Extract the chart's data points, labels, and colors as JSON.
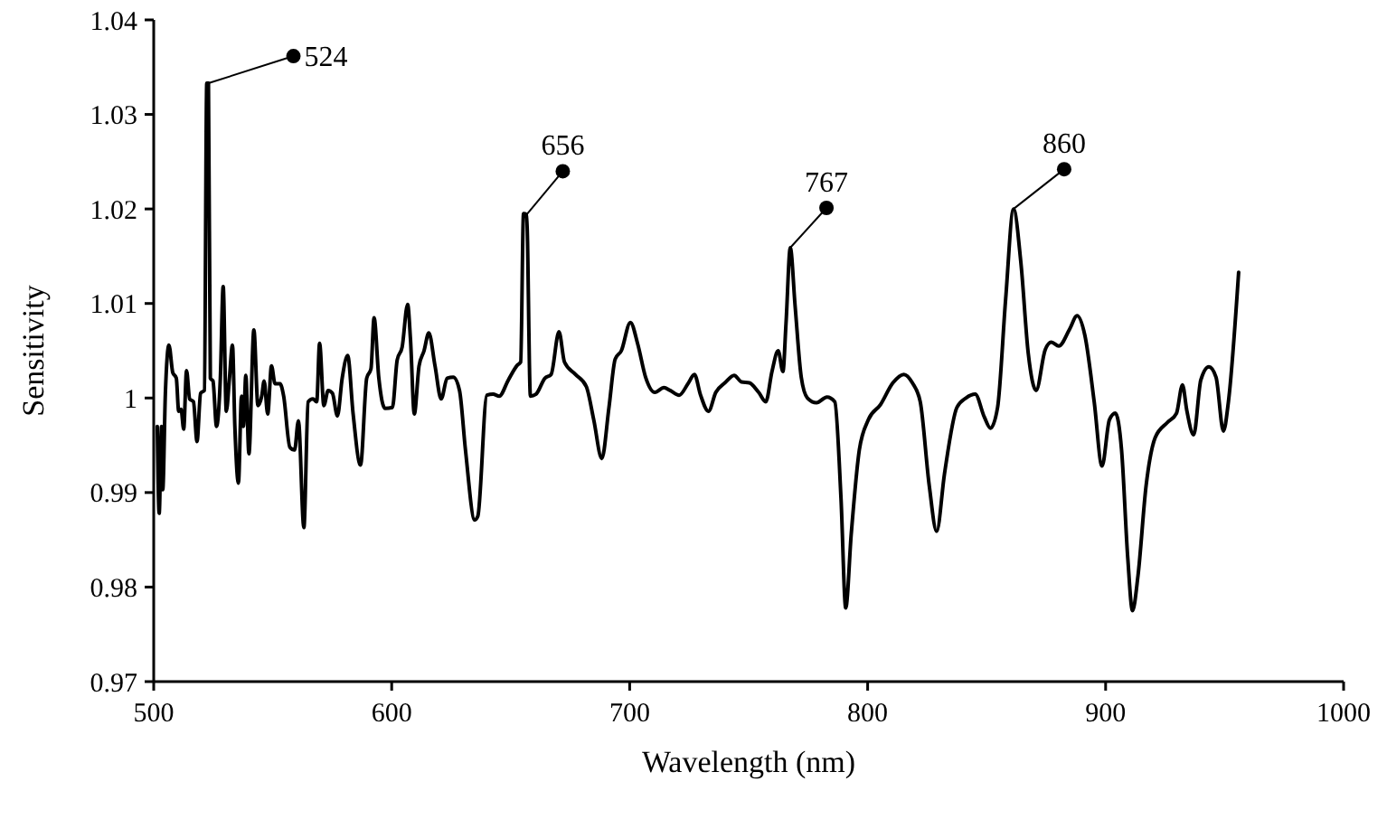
{
  "chart_data": {
    "type": "line",
    "xlabel": "Wavelength (nm)",
    "ylabel": "Sensitivity",
    "xlim": [
      500,
      1000
    ],
    "xticks": [
      500,
      600,
      700,
      800,
      900,
      1000
    ],
    "ylim": [
      0.97,
      1.04
    ],
    "yticks": [
      0.97,
      0.98,
      0.99,
      1,
      1.01,
      1.02,
      1.03,
      1.04
    ],
    "grid": false,
    "marker": "none",
    "line_style": "solid",
    "annotations": [
      {
        "text": "524",
        "x": 523,
        "y": 1.0333
      },
      {
        "text": "656",
        "x": 656.7,
        "y": 1.0194
      },
      {
        "text": "767",
        "x": 767.5,
        "y": 1.0159
      },
      {
        "text": "860",
        "x": 861.3,
        "y": 1.02
      }
    ],
    "series": [
      {
        "color": "#000000",
        "x": [
          501.5,
          502.3,
          503.3,
          503.8,
          504.9,
          506.4,
          508,
          509.5,
          510.5,
          511.5,
          512.6,
          513.8,
          515.1,
          516.7,
          518.2,
          519.7,
          521.3,
          522.3,
          523,
          523.8,
          524.9,
          526.4,
          528,
          529.2,
          530.5,
          531.8,
          533.1,
          534.1,
          535.6,
          536.9,
          537.7,
          538.7,
          540,
          542.1,
          543.8,
          545.4,
          546.4,
          547.9,
          549.5,
          551,
          553.1,
          554.6,
          557.2,
          559.2,
          560.8,
          563.1,
          564.9,
          566.9,
          568.5,
          569.7,
          571.5,
          573.3,
          575.1,
          577.2,
          579.2,
          581.5,
          583.8,
          586.9,
          589.5,
          591.3,
          592.6,
          594.6,
          597.2,
          600.3,
          602.3,
          604.4,
          606.7,
          607.9,
          609.5,
          611.5,
          613.6,
          615.6,
          618.2,
          620.8,
          623.3,
          625.9,
          628.5,
          631,
          634.9,
          636.2,
          640,
          642.6,
          645.2,
          649,
          652.9,
          654.2,
          655.4,
          656.7,
          658.3,
          660.6,
          664.4,
          667,
          670.3,
          672.6,
          677.2,
          681.8,
          684.9,
          688.3,
          691.3,
          693.9,
          696.5,
          700.3,
          703.4,
          706.7,
          710.6,
          714.4,
          717,
          720.8,
          724.7,
          727.2,
          729.8,
          733.1,
          736.2,
          740,
          743.9,
          747,
          750.3,
          754.2,
          757.2,
          759.8,
          762.4,
          764.4,
          765.7,
          767.5,
          769.5,
          772.1,
          774.7,
          778.5,
          782.9,
          786.2,
          788.8,
          790.8,
          793.1,
          796.5,
          800.3,
          805.4,
          810.6,
          815.2,
          818.8,
          822.1,
          825.9,
          829,
          832.3,
          837.5,
          841.3,
          845.2,
          849,
          851.6,
          854.6,
          858,
          861.3,
          864.4,
          867.5,
          870.8,
          874.6,
          877.2,
          880.3,
          884.9,
          888,
          891.3,
          895.2,
          898.5,
          901.6,
          904.1,
          906.7,
          909.3,
          911.3,
          913.6,
          917,
          920.8,
          925.9,
          929.8,
          932.3,
          934.1,
          937,
          940,
          943.4,
          946.4,
          949.5,
          951.6,
          955.9
        ],
        "values": [
          0.997,
          0.9878,
          0.997,
          0.9903,
          1.0005,
          1.0056,
          1.0027,
          1.0021,
          0.9986,
          0.9988,
          0.9967,
          1.0029,
          0.9999,
          0.9996,
          0.9954,
          1.0005,
          1.0008,
          1.0333,
          1.0333,
          1.0021,
          1.0018,
          0.997,
          1.0021,
          1.0118,
          0.9986,
          1.002,
          1.0056,
          0.997,
          0.991,
          1.0002,
          0.997,
          1.0024,
          0.9941,
          1.0072,
          0.9992,
          1.0002,
          1.0018,
          0.9983,
          1.0034,
          1.0015,
          1.0015,
          1.0002,
          0.9948,
          0.9945,
          0.9976,
          0.9863,
          0.9996,
          0.9999,
          0.9996,
          1.0058,
          0.9992,
          1.0008,
          1.0005,
          0.9981,
          1.0021,
          1.0045,
          0.9983,
          0.9929,
          1.0021,
          1.0031,
          1.0085,
          1.0021,
          0.9989,
          0.999,
          1.004,
          1.0054,
          1.0099,
          1.0062,
          0.9983,
          1.0034,
          1.005,
          1.0069,
          1.0034,
          0.9999,
          1.0021,
          1.0022,
          1.0008,
          0.9945,
          0.9871,
          0.9875,
          1.0003,
          1.0004,
          1.0002,
          1.0019,
          1.0035,
          1.0038,
          1.0195,
          1.0194,
          1.0002,
          1.0004,
          1.0021,
          1.0025,
          1.007,
          1.0038,
          1.0025,
          1.0012,
          0.9977,
          0.9936,
          0.999,
          1.0041,
          1.005,
          1.008,
          1.0057,
          1.0022,
          1.0006,
          1.0011,
          1.0008,
          1.0003,
          1.0016,
          1.0025,
          1.0003,
          0.9986,
          1.0006,
          1.0016,
          1.0024,
          1.0017,
          1.0016,
          1.0006,
          0.9996,
          1.0028,
          1.005,
          1.0028,
          1.0079,
          1.0159,
          1.0098,
          1.0022,
          1,
          0.9995,
          1.0001,
          0.9996,
          0.9894,
          0.9778,
          0.9856,
          0.9945,
          0.9977,
          0.9993,
          1.0016,
          1.0025,
          1.0016,
          0.9996,
          0.9907,
          0.9859,
          0.992,
          0.999,
          1,
          1.0004,
          0.998,
          0.9968,
          0.999,
          1.0105,
          1.02,
          1.0143,
          1.0047,
          1.0008,
          1.0051,
          1.0059,
          1.0055,
          1.0073,
          1.0087,
          1.0066,
          0.9996,
          0.9928,
          0.9977,
          0.9984,
          0.9945,
          0.9831,
          0.9775,
          0.9812,
          0.9907,
          0.9958,
          0.9974,
          0.9984,
          1.0014,
          0.9987,
          0.9961,
          1.0019,
          1.0033,
          1.0022,
          0.9965,
          0.9996,
          1.0133
        ]
      }
    ]
  }
}
